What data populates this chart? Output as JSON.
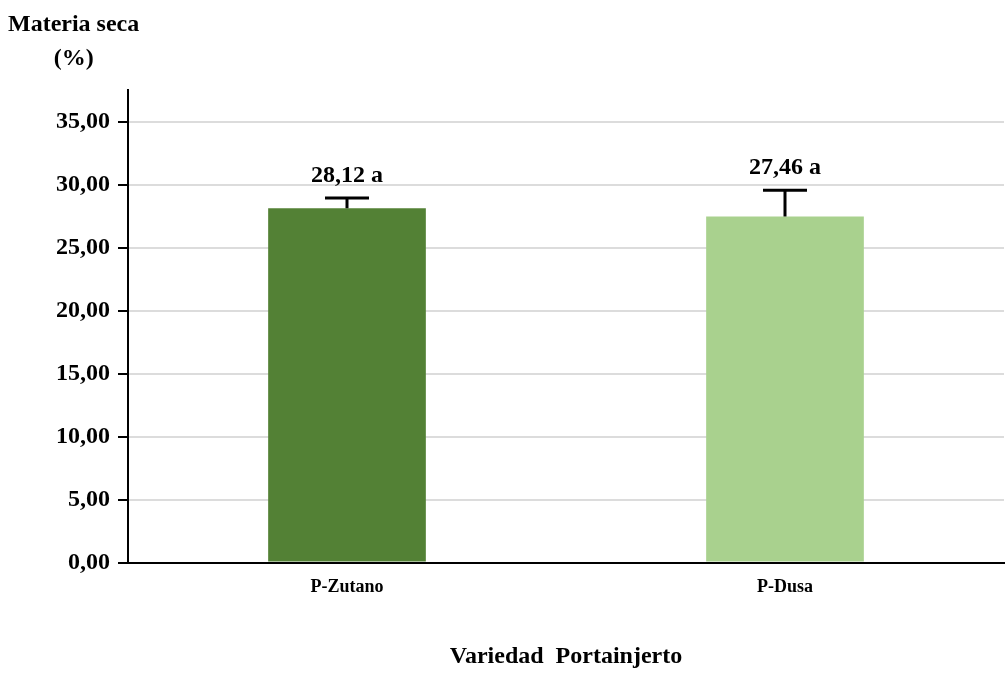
{
  "chart_data": {
    "type": "bar",
    "ylabel": "Materia seca\n(%)",
    "xlabel": "Variedad  Portainjerto",
    "categories": [
      "P-Zutano",
      "P-Dusa"
    ],
    "values": [
      28.12,
      27.46
    ],
    "colors": [
      "#538135",
      "#a9d18e"
    ],
    "errors": [
      [
        28.12,
        28.93
      ],
      [
        27.46,
        29.55
      ]
    ],
    "value_labels": [
      "28,12 a",
      "27,46 a"
    ],
    "ylim": [
      0,
      37.5
    ],
    "yticks": [
      {
        "value": 0,
        "label": "0,00"
      },
      {
        "value": 5,
        "label": "5,00"
      },
      {
        "value": 10,
        "label": "10,00"
      },
      {
        "value": 15,
        "label": "15,00"
      },
      {
        "value": 20,
        "label": "20,00"
      },
      {
        "value": 25,
        "label": "25,00"
      },
      {
        "value": 30,
        "label": "30,00"
      },
      {
        "value": 35,
        "label": "35,00"
      }
    ],
    "grid": "y"
  }
}
